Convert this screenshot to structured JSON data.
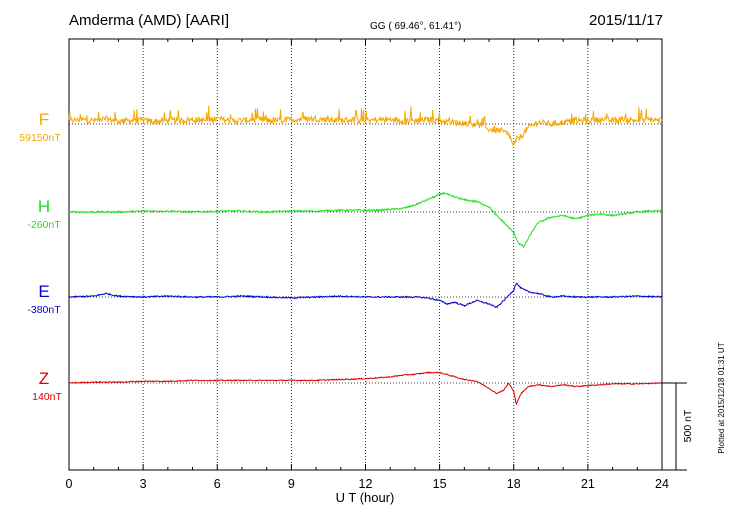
{
  "header": {
    "station": "Amderma (AMD)  [AARI]",
    "coords": "GG ( 69.46°,  61.41°)",
    "date": "2015/11/17"
  },
  "footer": {
    "plotted": "Plotted at 2015/12/18 01:31  UT"
  },
  "chart_data": {
    "type": "line",
    "title": "Amderma (AMD)  [AARI]",
    "xlabel": "U T (hour)",
    "xlim": [
      0,
      24
    ],
    "xticks": [
      0,
      3,
      6,
      9,
      12,
      15,
      18,
      21,
      24
    ],
    "grid": "dotted vertical lines every 3 hours",
    "scale_bar": {
      "label": "500 nT",
      "value_nT": 500
    },
    "colors": {
      "F": "#f5a800",
      "H": "#1ee01e",
      "E": "#0000cc",
      "Z": "#dd0000"
    },
    "series": [
      {
        "name": "F",
        "baseline": "59150nT",
        "baseline_nT": 59150,
        "x": [
          0,
          0.5,
          1,
          1.5,
          2,
          2.5,
          3,
          3.5,
          4,
          4.5,
          5,
          5.5,
          6,
          6.5,
          7,
          7.5,
          8,
          8.5,
          9,
          9.5,
          10,
          10.5,
          11,
          11.5,
          12,
          12.5,
          13,
          13.5,
          14,
          14.5,
          15,
          15.5,
          16,
          16.5,
          17,
          17.5,
          17.8,
          18,
          18.1,
          18.3,
          18.6,
          19,
          19.5,
          20,
          20.5,
          21,
          21.5,
          22,
          22.5,
          23,
          23.5,
          24
        ],
        "y": [
          20,
          25,
          20,
          30,
          15,
          20,
          20,
          15,
          20,
          20,
          25,
          20,
          30,
          20,
          20,
          25,
          20,
          20,
          25,
          30,
          30,
          25,
          20,
          25,
          20,
          25,
          25,
          20,
          20,
          25,
          20,
          10,
          5,
          0,
          -30,
          -40,
          -60,
          -130,
          -90,
          -70,
          -20,
          10,
          0,
          10,
          20,
          20,
          25,
          20,
          25,
          20,
          25,
          20
        ],
        "noise_nT": 35
      },
      {
        "name": "H",
        "baseline": "-260nT",
        "baseline_nT": -260,
        "x": [
          0,
          1,
          2,
          3,
          4,
          5,
          6,
          7,
          8,
          9,
          10,
          11,
          12,
          12.5,
          13,
          13.5,
          14,
          14.5,
          15,
          15.2,
          15.5,
          16,
          16.5,
          17,
          17.3,
          17.6,
          17.8,
          18,
          18.2,
          18.4,
          18.6,
          18.8,
          19,
          19.5,
          20,
          20.5,
          21,
          21.5,
          22,
          22.5,
          23,
          23.5,
          24
        ],
        "y": [
          0,
          0,
          0,
          5,
          5,
          0,
          5,
          5,
          0,
          5,
          5,
          10,
          10,
          10,
          15,
          20,
          40,
          70,
          100,
          110,
          90,
          70,
          60,
          30,
          -20,
          -60,
          -90,
          -120,
          -180,
          -200,
          -150,
          -100,
          -60,
          -30,
          -20,
          -40,
          -20,
          -10,
          -20,
          -10,
          0,
          5,
          5
        ],
        "noise_nT": 10
      },
      {
        "name": "E",
        "baseline": "-380nT",
        "baseline_nT": -380,
        "x": [
          0,
          1,
          1.5,
          2,
          3,
          4,
          5,
          6,
          7,
          8,
          9,
          10,
          11,
          12,
          13,
          14,
          14.5,
          15,
          15.3,
          15.6,
          16,
          16.5,
          17,
          17.3,
          17.6,
          18,
          18.1,
          18.3,
          18.6,
          19,
          19.5,
          20,
          20.5,
          21,
          22,
          23,
          24
        ],
        "y": [
          0,
          5,
          20,
          5,
          0,
          5,
          0,
          0,
          5,
          0,
          -5,
          0,
          5,
          0,
          0,
          0,
          -5,
          -20,
          -40,
          -30,
          -50,
          -20,
          -40,
          -60,
          -20,
          40,
          80,
          50,
          30,
          20,
          0,
          5,
          0,
          0,
          0,
          5,
          0
        ],
        "noise_nT": 8
      },
      {
        "name": "Z",
        "baseline": "140nT",
        "baseline_nT": 140,
        "x": [
          0,
          1,
          2,
          3,
          4,
          5,
          6,
          7,
          8,
          9,
          10,
          11,
          12,
          12.5,
          13,
          13.5,
          14,
          14.5,
          15,
          15.5,
          16,
          16.5,
          17,
          17.3,
          17.6,
          17.8,
          18,
          18.1,
          18.3,
          18.6,
          19,
          19.5,
          20,
          20.5,
          21,
          22,
          23,
          24
        ],
        "y": [
          0,
          5,
          5,
          10,
          10,
          15,
          15,
          15,
          15,
          15,
          15,
          20,
          25,
          30,
          35,
          45,
          50,
          60,
          60,
          40,
          20,
          10,
          -30,
          -60,
          -40,
          0,
          -50,
          -120,
          -60,
          -20,
          -10,
          -20,
          -10,
          -20,
          -15,
          -5,
          -5,
          0
        ],
        "noise_nT": 6
      }
    ]
  }
}
